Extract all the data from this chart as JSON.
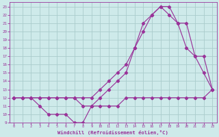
{
  "xlabel": "Windchill (Refroidissement éolien,°C)",
  "background_color": "#ceeaea",
  "grid_color": "#aacccc",
  "line_color": "#993399",
  "xlim": [
    -0.5,
    23.5
  ],
  "ylim": [
    9,
    23.5
  ],
  "xticks": [
    0,
    1,
    2,
    3,
    4,
    5,
    6,
    7,
    8,
    9,
    10,
    11,
    12,
    13,
    14,
    15,
    16,
    17,
    18,
    19,
    20,
    21,
    22,
    23
  ],
  "yticks": [
    9,
    10,
    11,
    12,
    13,
    14,
    15,
    16,
    17,
    18,
    19,
    20,
    21,
    22,
    23
  ],
  "line1_x": [
    0,
    1,
    2,
    3,
    4,
    5,
    6,
    7,
    8,
    9,
    10,
    11,
    12,
    13,
    14,
    15,
    16,
    17,
    18,
    19,
    20,
    21,
    22,
    23
  ],
  "line1_y": [
    12,
    12,
    12,
    11,
    10,
    10,
    10,
    9,
    9,
    11,
    11,
    11,
    11,
    12,
    12,
    12,
    12,
    12,
    12,
    12,
    12,
    12,
    12,
    13
  ],
  "line2_x": [
    0,
    1,
    2,
    3,
    4,
    5,
    6,
    7,
    8,
    9,
    10,
    11,
    12,
    13,
    14,
    15,
    16,
    17,
    18,
    19,
    20,
    21,
    22,
    23
  ],
  "line2_y": [
    12,
    12,
    12,
    12,
    12,
    12,
    12,
    12,
    11,
    11,
    12,
    13,
    14,
    15,
    18,
    21,
    22,
    23,
    22,
    21,
    21,
    17,
    15,
    13
  ],
  "line3_x": [
    0,
    1,
    2,
    3,
    4,
    5,
    6,
    7,
    8,
    9,
    10,
    11,
    12,
    13,
    14,
    15,
    16,
    17,
    18,
    19,
    20,
    21,
    22,
    23
  ],
  "line3_y": [
    12,
    12,
    12,
    12,
    12,
    12,
    12,
    12,
    12,
    12,
    13,
    14,
    15,
    16,
    18,
    20,
    22,
    23,
    23,
    21,
    18,
    17,
    17,
    13
  ]
}
